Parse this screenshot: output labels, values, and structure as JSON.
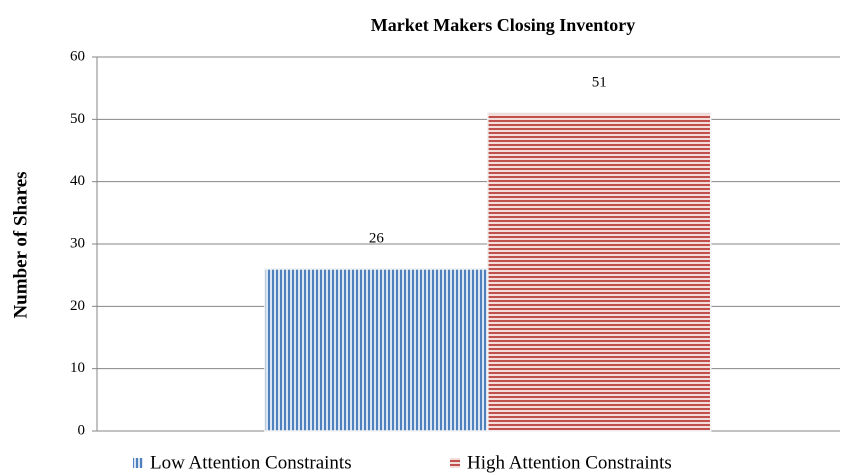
{
  "chart_data": {
    "type": "bar",
    "title": "Market Makers Closing Inventory",
    "y_label": "Number of Shares",
    "categories": [
      null
    ],
    "series": [
      {
        "name": "Low Attention Constraints",
        "color": "#4f81bd",
        "values": [
          26
        ]
      },
      {
        "name": "High Attention Constraints",
        "color": "#c0504d",
        "values": [
          51
        ]
      }
    ],
    "ylim": [
      0,
      60
    ],
    "yticks": [
      0,
      10,
      20,
      30,
      40,
      50,
      60
    ],
    "grid": true,
    "legend": "bottom"
  }
}
